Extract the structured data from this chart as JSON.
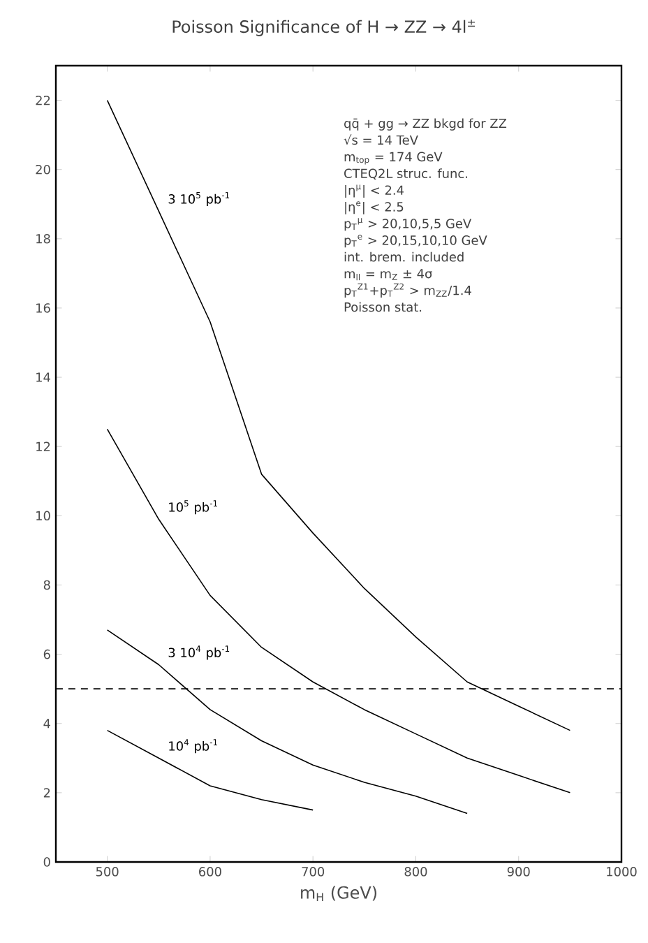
{
  "chart_data": {
    "type": "line",
    "title": "Poisson Significance of H → ZZ → 4l$^{±}$",
    "xlabel": "m$_{H}$ (GeV)",
    "xlim": [
      450,
      1000
    ],
    "xticks": [
      500,
      600,
      700,
      800,
      900,
      1000
    ],
    "ylim": [
      0,
      23
    ],
    "yticks": [
      0,
      2,
      4,
      6,
      8,
      10,
      12,
      14,
      16,
      18,
      20,
      22
    ],
    "grid": false,
    "legend": false,
    "marker": "none",
    "line_style": "solid",
    "series": [
      {
        "name": "3 10$^{5}$ pb$^{-1}$",
        "color": "#000000",
        "x": [
          500,
          550,
          600,
          650,
          700,
          750,
          800,
          850,
          900,
          950
        ],
        "values": [
          22,
          18.8,
          15.6,
          11.2,
          9.5,
          7.9,
          6.5,
          5.2,
          4.5,
          3.8
        ]
      },
      {
        "name": "10$^{5}$ pb$^{-1}$",
        "color": "#000000",
        "x": [
          500,
          550,
          600,
          650,
          700,
          750,
          800,
          850,
          900,
          950
        ],
        "values": [
          12.5,
          9.9,
          7.7,
          6.2,
          5.2,
          4.4,
          3.7,
          3.0,
          2.5,
          2.0
        ]
      },
      {
        "name": "3 10$^{4}$ pb$^{-1}$",
        "color": "#000000",
        "x": [
          500,
          550,
          600,
          650,
          700,
          750,
          800,
          850
        ],
        "values": [
          6.7,
          5.7,
          4.4,
          3.5,
          2.8,
          2.3,
          1.9,
          1.4
        ]
      },
      {
        "name": "10$^{4}$ pb$^{-1}$",
        "color": "#000000",
        "x": [
          500,
          550,
          600,
          650,
          700
        ],
        "values": [
          3.8,
          3.0,
          2.2,
          1.8,
          1.5
        ]
      }
    ],
    "ref_lines": [
      {
        "axis": "y",
        "value": 5,
        "line_style": "dashed",
        "color": "#000000"
      }
    ],
    "annotations": [
      "qq̄ + gg → ZZ bkgd for ZZ",
      "√s = 14 TeV",
      "m$_{top}$ = 174 GeV",
      "CTEQ2L struc. func.",
      "|η$^{μ}$| < 2.4",
      "|η$^{e}$| < 2.5",
      "p$_{T}$$^{μ}$ > 20,10,5,5 GeV",
      "p$_{T}$$^{e}$ > 20,15,10,10 GeV",
      "int. brem. included",
      "m$_{ll}$ = m$_{Z}$ ± 4σ",
      "p$_{T}$$^{Z1}$+p$_{T}$$^{Z2}$ > m$_{ZZ}$/1.4",
      "Poisson stat."
    ]
  }
}
